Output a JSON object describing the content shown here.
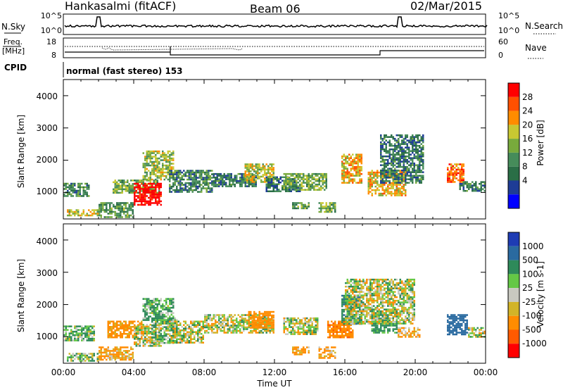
{
  "header": {
    "station": "Hankasalmi (fitACF)",
    "beam": "Beam 06",
    "date": "02/Mar/2015"
  },
  "top_panel": {
    "left_label": "N.Sky",
    "right_label": "N.Search",
    "left_ticks": [
      "10^5",
      "10^0"
    ],
    "right_ticks": [
      "10^5",
      "10^0"
    ]
  },
  "freq_panel": {
    "left_label_1": "Freq.",
    "left_label_2": "[MHz]",
    "left_ticks": [
      "18",
      "8"
    ],
    "right_label": "Nave",
    "right_ticks": [
      "60",
      "0"
    ]
  },
  "cpid": {
    "label": "CPID",
    "text": "normal (fast stereo) 153"
  },
  "power_panel": {
    "ylabel": "Slant Range [km]",
    "yticks": [
      "4000",
      "3000",
      "2000",
      "1000"
    ],
    "colorbar_label": "Power [dB]",
    "colorbar_ticks": [
      "28",
      "24",
      "20",
      "16",
      "12",
      "8",
      "4"
    ],
    "colors": [
      "#0000ff",
      "#1e3c96",
      "#2a6e46",
      "#468c5a",
      "#78aa3c",
      "#c8c832",
      "#ff8c00",
      "#ff5000",
      "#ff0000"
    ]
  },
  "velocity_panel": {
    "ylabel": "Slant Range [km]",
    "yticks": [
      "4000",
      "3000",
      "2000",
      "1000"
    ],
    "colorbar_label": "Velocity [m s-1]",
    "colorbar_ticks": [
      "1000",
      "500",
      "100",
      "25",
      "-25",
      "-100",
      "-500",
      "-1000"
    ],
    "colors": [
      "#1e3cb4",
      "#2a6aa0",
      "#2e8a5a",
      "#64c846",
      "#c8c8c0",
      "#d2b428",
      "#ff8c00",
      "#ff5a00",
      "#ff0000"
    ]
  },
  "xaxis": {
    "label": "Time UT",
    "ticks": [
      "00:00",
      "04:00",
      "08:00",
      "12:00",
      "16:00",
      "20:00",
      "00:00"
    ]
  },
  "chart_data": [
    {
      "type": "heatmap",
      "title": "Beam 06",
      "xlabel": "Time UT",
      "ylabel": "Slant Range [km]",
      "xlim": [
        0,
        24
      ],
      "ylim": [
        180,
        4500
      ],
      "colorbar_label": "Power [dB]",
      "colorbar_range": [
        0,
        30
      ],
      "blobs": [
        {
          "t": [
            0.0,
            1.5
          ],
          "r": [
            900,
            1300
          ],
          "power": 10
        },
        {
          "t": [
            0.2,
            2.0
          ],
          "r": [
            280,
            480
          ],
          "power": 18
        },
        {
          "t": [
            2.0,
            4.0
          ],
          "r": [
            250,
            700
          ],
          "power": 12
        },
        {
          "t": [
            2.8,
            5.5
          ],
          "r": [
            1000,
            1400
          ],
          "power": 14
        },
        {
          "t": [
            4.0,
            5.6
          ],
          "r": [
            600,
            1300
          ],
          "power": 30
        },
        {
          "t": [
            4.5,
            6.2
          ],
          "r": [
            1400,
            2300
          ],
          "power": 16
        },
        {
          "t": [
            6.0,
            8.5
          ],
          "r": [
            1000,
            1700
          ],
          "power": 10
        },
        {
          "t": [
            8.5,
            11.0
          ],
          "r": [
            1200,
            1600
          ],
          "power": 9
        },
        {
          "t": [
            10.3,
            12.0
          ],
          "r": [
            1300,
            1900
          ],
          "power": 18
        },
        {
          "t": [
            11.5,
            13.5
          ],
          "r": [
            1050,
            1500
          ],
          "power": 9
        },
        {
          "t": [
            12.5,
            15.0
          ],
          "r": [
            1100,
            1600
          ],
          "power": 14
        },
        {
          "t": [
            13.0,
            14.0
          ],
          "r": [
            500,
            700
          ],
          "power": 12
        },
        {
          "t": [
            14.5,
            15.5
          ],
          "r": [
            400,
            700
          ],
          "power": 14
        },
        {
          "t": [
            15.8,
            17.0
          ],
          "r": [
            1300,
            2200
          ],
          "power": 20
        },
        {
          "t": [
            17.3,
            19.5
          ],
          "r": [
            900,
            1700
          ],
          "power": 20
        },
        {
          "t": [
            18.0,
            20.5
          ],
          "r": [
            1300,
            2800
          ],
          "power": 9
        },
        {
          "t": [
            21.8,
            22.8
          ],
          "r": [
            1300,
            1900
          ],
          "power": 24
        },
        {
          "t": [
            22.5,
            24.0
          ],
          "r": [
            1050,
            1350
          ],
          "power": 9
        }
      ]
    },
    {
      "type": "heatmap",
      "xlabel": "Time UT",
      "ylabel": "Slant Range [km]",
      "xlim": [
        0,
        24
      ],
      "ylim": [
        180,
        4500
      ],
      "colorbar_label": "Velocity [m s-1]",
      "colorbar_range": [
        -1000,
        1000
      ],
      "blobs": [
        {
          "t": [
            0.0,
            1.8
          ],
          "r": [
            900,
            1350
          ],
          "velocity": 100
        },
        {
          "t": [
            0.2,
            2.0
          ],
          "r": [
            280,
            500
          ],
          "velocity": 60
        },
        {
          "t": [
            2.0,
            4.0
          ],
          "r": [
            280,
            700
          ],
          "velocity": -120
        },
        {
          "t": [
            2.5,
            4.5
          ],
          "r": [
            1000,
            1500
          ],
          "velocity": -200
        },
        {
          "t": [
            4.0,
            5.6
          ],
          "r": [
            700,
            1400
          ],
          "velocity": 0
        },
        {
          "t": [
            5.0,
            6.5
          ],
          "r": [
            800,
            1600
          ],
          "velocity": 90
        },
        {
          "t": [
            4.5,
            6.2
          ],
          "r": [
            1500,
            2200
          ],
          "velocity": 120
        },
        {
          "t": [
            6.0,
            8.0
          ],
          "r": [
            800,
            1500
          ],
          "velocity": 0
        },
        {
          "t": [
            8.0,
            12.0
          ],
          "r": [
            1100,
            1700
          ],
          "velocity": 0
        },
        {
          "t": [
            10.5,
            12.0
          ],
          "r": [
            1300,
            1800
          ],
          "velocity": -300
        },
        {
          "t": [
            12.5,
            14.5
          ],
          "r": [
            1100,
            1600
          ],
          "velocity": 0
        },
        {
          "t": [
            13.0,
            14.0
          ],
          "r": [
            450,
            700
          ],
          "velocity": -150
        },
        {
          "t": [
            14.5,
            15.5
          ],
          "r": [
            350,
            700
          ],
          "velocity": -150
        },
        {
          "t": [
            15.0,
            16.5
          ],
          "r": [
            1000,
            1500
          ],
          "velocity": -400
        },
        {
          "t": [
            15.8,
            17.0
          ],
          "r": [
            1400,
            2300
          ],
          "velocity": 400
        },
        {
          "t": [
            17.5,
            19.0
          ],
          "r": [
            1100,
            1700
          ],
          "velocity": 200
        },
        {
          "t": [
            16.0,
            20.0
          ],
          "r": [
            1400,
            2800
          ],
          "velocity": 0
        },
        {
          "t": [
            19.0,
            20.3
          ],
          "r": [
            1000,
            1300
          ],
          "velocity": -120
        },
        {
          "t": [
            21.8,
            23.0
          ],
          "r": [
            1050,
            1700
          ],
          "velocity": 700
        },
        {
          "t": [
            23.0,
            24.0
          ],
          "r": [
            1000,
            1300
          ],
          "velocity": 0
        }
      ]
    }
  ]
}
